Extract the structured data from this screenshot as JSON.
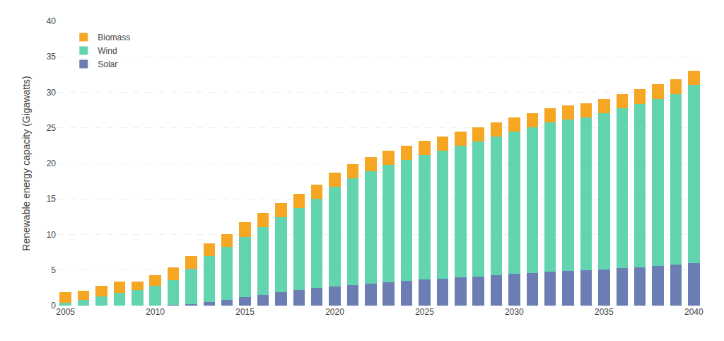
{
  "chart_data": {
    "type": "bar",
    "stacked": true,
    "categories": [
      "2005",
      null,
      null,
      null,
      null,
      "2010",
      null,
      null,
      null,
      null,
      "2015",
      null,
      null,
      null,
      null,
      "2020",
      null,
      null,
      null,
      null,
      "2025",
      null,
      null,
      null,
      null,
      "2030",
      null,
      null,
      null,
      null,
      "2035",
      null,
      null,
      null,
      null,
      "2040"
    ],
    "series": [
      {
        "name": "Solar",
        "color": "#6b7db3",
        "values": [
          0.0,
          0.0,
          0.0,
          0.0,
          0.0,
          0.05,
          0.1,
          0.2,
          0.5,
          0.8,
          1.2,
          1.5,
          1.9,
          2.2,
          2.5,
          2.7,
          2.9,
          3.1,
          3.3,
          3.5,
          3.7,
          3.8,
          4.0,
          4.1,
          4.3,
          4.5,
          4.6,
          4.8,
          4.9,
          5.0,
          5.1,
          5.3,
          5.4,
          5.6,
          5.8,
          6.0
        ]
      },
      {
        "name": "Wind",
        "color": "#63d4b0",
        "values": [
          0.4,
          0.8,
          1.3,
          1.8,
          2.2,
          2.7,
          3.5,
          5.0,
          6.5,
          7.5,
          8.5,
          9.5,
          10.5,
          11.5,
          12.5,
          14.0,
          15.0,
          15.8,
          16.5,
          17.0,
          17.5,
          18.0,
          18.5,
          19.0,
          19.5,
          20.0,
          20.5,
          21.0,
          21.3,
          21.5,
          22.0,
          22.5,
          23.0,
          23.5,
          24.0,
          25.0
        ]
      },
      {
        "name": "Biomass",
        "color": "#f5a623",
        "values": [
          1.5,
          1.3,
          1.5,
          1.6,
          1.2,
          1.5,
          1.8,
          1.8,
          1.8,
          1.8,
          2.0,
          2.0,
          2.0,
          2.0,
          2.0,
          2.0,
          2.0,
          2.0,
          2.0,
          2.0,
          2.0,
          2.0,
          2.0,
          2.0,
          2.0,
          2.0,
          2.0,
          2.0,
          2.0,
          2.0,
          2.0,
          2.0,
          2.0,
          2.0,
          2.0,
          2.0
        ]
      }
    ],
    "ylabel": "Renewable energy capacity (Gigawatts)",
    "ylim": [
      0,
      40
    ],
    "yticks": [
      0,
      5,
      10,
      15,
      20,
      25,
      30,
      35,
      40
    ],
    "grid": true,
    "legend": "upper left"
  }
}
